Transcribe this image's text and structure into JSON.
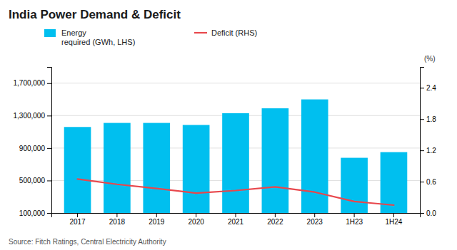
{
  "chart_data": {
    "type": "bar",
    "title": "India Power Demand & Deficit",
    "categories": [
      "2017",
      "2018",
      "2019",
      "2020",
      "2021",
      "2022",
      "2023",
      "1H23",
      "1H24"
    ],
    "series": [
      {
        "name": "Energy\nrequired (GWh, LHS)",
        "type": "bar",
        "color": "#00BFEF",
        "values": [
          1160000,
          1210000,
          1210000,
          1185000,
          1330000,
          1390000,
          1500000,
          780000,
          850000
        ]
      },
      {
        "name": "Deficit (RHS)",
        "type": "line",
        "axis": "y2",
        "color": "#E8474C",
        "values": [
          0.65,
          0.55,
          0.47,
          0.38,
          0.43,
          0.5,
          0.4,
          0.22,
          0.15
        ]
      }
    ],
    "ylim": [
      100000,
      1900000
    ],
    "yticks": [
      {
        "value": 100000,
        "label": "100,000"
      },
      {
        "value": 500000,
        "label": "500,000"
      },
      {
        "value": 900000,
        "label": "900,000"
      },
      {
        "value": 1300000,
        "label": "1,300,000"
      },
      {
        "value": 1700000,
        "label": "1,700,000"
      }
    ],
    "y2lim": [
      0.0,
      2.8
    ],
    "y2ticks": [
      {
        "value": 0.0,
        "label": "0.0"
      },
      0.6,
      1.2,
      1.8,
      2.4
    ],
    "y2label": "(%)",
    "grid": true,
    "legend": "upper left",
    "annotations": [
      "Source: Fitch Ratings, Central Electricity Authority"
    ]
  }
}
